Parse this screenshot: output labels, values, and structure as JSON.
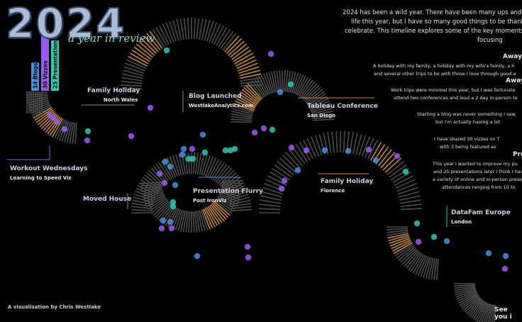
{
  "title": {
    "year": "2024",
    "subtitle": "a year in review"
  },
  "chart_data": {
    "type": "bar",
    "categories": [
      "Blogs",
      "Vizzes",
      "Presentations"
    ],
    "series": [
      {
        "values": [
          14,
          30,
          25
        ]
      }
    ],
    "bar_labels": [
      "14 Blogs",
      "30 Vizzes",
      "25 Presentations"
    ],
    "colors": [
      "#4a8fe0",
      "#9a5bef",
      "#2fc9b0"
    ],
    "timeline_annotations": [
      {
        "title": "Family Holiday",
        "subtitle": "North Wales"
      },
      {
        "title": "Blog Launched",
        "subtitle": "WestlakeAnalytics.com"
      },
      {
        "title": "Tableau Conference",
        "subtitle": "San Diego"
      },
      {
        "title": "Workout Wednesdays",
        "subtitle": "Learning to Speed Viz"
      },
      {
        "title": "Presentation Flurry",
        "subtitle": "Post IronViz"
      },
      {
        "title": "Moved House",
        "subtitle": ""
      },
      {
        "title": "Family Holiday",
        "subtitle": "Florence"
      },
      {
        "title": "DataFam Europe",
        "subtitle": "London"
      }
    ]
  },
  "intro": {
    "line1": "2024 has been a wild year. There have been many ups and d",
    "line2": "life this year, but I have so many good things to be thank",
    "line3": "celebrate. This timeline explores some of the key moments",
    "line4": "focusing"
  },
  "sections": [
    {
      "heading": "Away w",
      "heading_color": "#f0a040",
      "lines": [
        "A holiday with my family, a holiday with my wife's family, a h",
        "and several other trips to be with those I love through good a"
      ]
    },
    {
      "heading": "Away",
      "heading_color": "#f0a040",
      "lines": [
        "Work trips were minimal this year, but I was fortunate",
        "attend two conferences and lead a 2 day in-person te"
      ]
    },
    {
      "heading": "",
      "heading_color": "#ffffff",
      "lines": [
        "Starting a blog was never something I saw",
        "but I'm actually having a lot"
      ]
    },
    {
      "heading": "",
      "heading_color": "#ffffff",
      "lines": [
        "I have shared 30 vizzes on T",
        "with 3 being featured as"
      ]
    },
    {
      "heading": "Pre",
      "heading_color": "#2fc9b0",
      "lines": [
        "This year I wanted to improve my pu",
        "and 25 presentations later I think I hav",
        "a variety of online and in-person prese",
        "attendances ranging from 10 to"
      ]
    }
  ],
  "credit": "A visualisation by Chris Westlake",
  "closing": "See you i"
}
